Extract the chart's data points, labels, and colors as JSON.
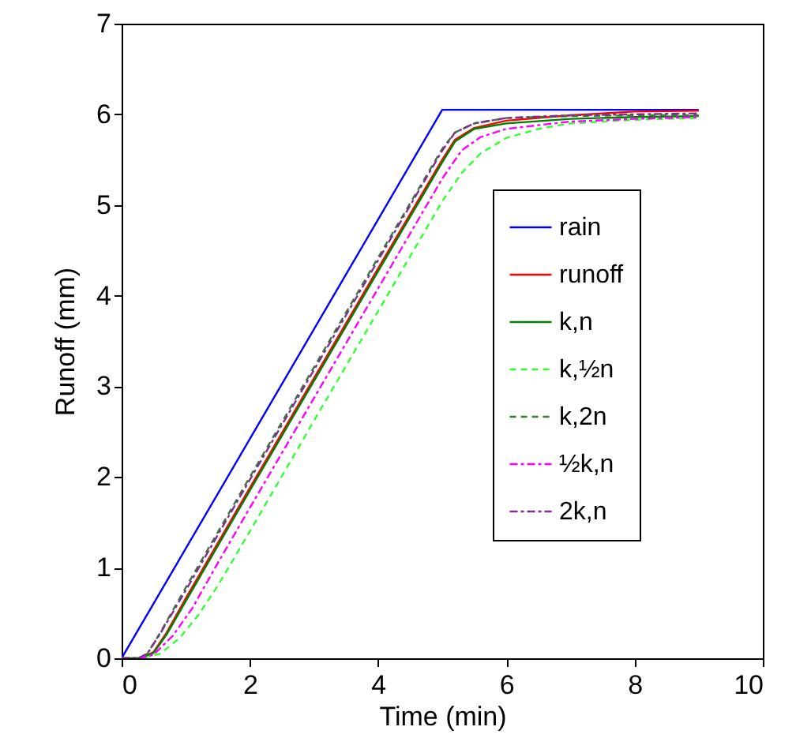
{
  "chart_data": {
    "type": "line",
    "xlabel": "Time (min)",
    "ylabel": "Runoff (mm)",
    "xlim": [
      0,
      10
    ],
    "xticks": [
      0,
      2,
      4,
      6,
      8,
      10
    ],
    "ylim": [
      0,
      7
    ],
    "yticks": [
      0,
      1,
      2,
      3,
      4,
      5,
      6,
      7
    ],
    "grid": false,
    "legend": "right",
    "marker": "none",
    "series": [
      {
        "name": "rain",
        "color": "#0000ff",
        "line_style": "solid",
        "x": [
          0,
          5,
          9
        ],
        "values": [
          0,
          6.05,
          6.05
        ]
      },
      {
        "name": "runoff",
        "color": "#ff0000",
        "line_style": "solid",
        "x": [
          0,
          0.3,
          0.5,
          0.7,
          1,
          2,
          3,
          4,
          5,
          5.2,
          5.5,
          6,
          7,
          8,
          9
        ],
        "values": [
          0,
          0,
          0.07,
          0.28,
          0.66,
          1.88,
          3.09,
          4.3,
          5.5,
          5.72,
          5.85,
          5.93,
          5.99,
          6.03,
          6.04
        ]
      },
      {
        "name": "k,n",
        "color": "#008000",
        "line_style": "solid",
        "x": [
          0,
          0.3,
          0.5,
          0.7,
          1,
          2,
          3,
          4,
          5,
          5.2,
          5.5,
          6,
          7,
          8,
          9
        ],
        "values": [
          0,
          0,
          0.06,
          0.26,
          0.63,
          1.85,
          3.06,
          4.27,
          5.47,
          5.7,
          5.84,
          5.9,
          5.95,
          5.97,
          5.98
        ]
      },
      {
        "name": "k,½n",
        "color": "#33ff33",
        "line_style": "dashed",
        "x": [
          0,
          0.3,
          0.6,
          0.9,
          1.2,
          1.5,
          2,
          3,
          4,
          5,
          5.3,
          5.6,
          6,
          6.5,
          7,
          8,
          9
        ],
        "values": [
          0,
          0,
          0.05,
          0.22,
          0.48,
          0.8,
          1.4,
          2.62,
          3.83,
          5.04,
          5.35,
          5.57,
          5.74,
          5.84,
          5.9,
          5.94,
          5.96
        ]
      },
      {
        "name": "k,2n",
        "color": "#3a7a3a",
        "line_style": "dashed",
        "x": [
          0,
          0.25,
          0.4,
          0.6,
          1,
          2,
          3,
          4,
          5,
          5.2,
          5.5,
          6,
          7,
          8,
          9
        ],
        "values": [
          0,
          0,
          0.05,
          0.28,
          0.78,
          2.0,
          3.21,
          4.42,
          5.62,
          5.8,
          5.9,
          5.96,
          5.98,
          5.99,
          5.99
        ]
      },
      {
        "name": "½k,n",
        "color": "#ff00ff",
        "line_style": "dashdot",
        "x": [
          0,
          0.3,
          0.5,
          0.8,
          1.1,
          1.5,
          2,
          3,
          4,
          5,
          5.3,
          5.6,
          6,
          7,
          8,
          9
        ],
        "values": [
          0,
          0,
          0.04,
          0.25,
          0.55,
          1.05,
          1.66,
          2.87,
          4.08,
          5.29,
          5.6,
          5.75,
          5.84,
          5.92,
          5.95,
          5.97
        ]
      },
      {
        "name": "2k,n",
        "color": "#7e2f8e",
        "line_style": "dashdot",
        "x": [
          0,
          0.25,
          0.4,
          0.6,
          1,
          2,
          3,
          4,
          5,
          5.2,
          5.5,
          6,
          7,
          8,
          9
        ],
        "values": [
          0,
          0,
          0.05,
          0.27,
          0.75,
          1.97,
          3.18,
          4.39,
          5.6,
          5.8,
          5.9,
          5.96,
          5.99,
          6.0,
          6.01
        ]
      }
    ]
  }
}
